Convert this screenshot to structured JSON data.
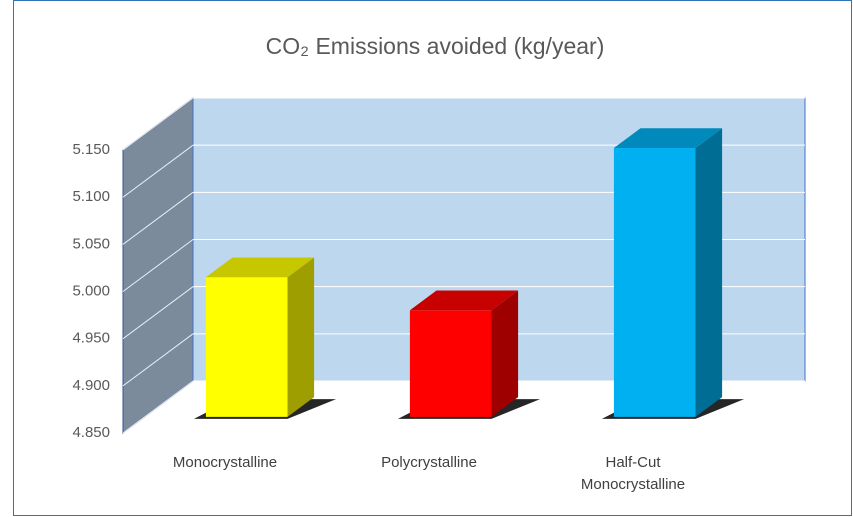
{
  "chart_data": {
    "type": "bar3d",
    "title": "CO₂ Emissions avoided (kg/year)",
    "categories": [
      "Monocrystalline",
      "Polycrystalline",
      "Half-Cut Monocrystalline"
    ],
    "values": [
      4.998,
      4.963,
      5.135
    ],
    "colors": [
      "#ffff00",
      "#ff0000",
      "#00b0f0"
    ],
    "ylim": [
      4.85,
      5.15
    ],
    "yticks": [
      {
        "value": 4.85,
        "label": "4.850"
      },
      {
        "value": 4.9,
        "label": "4.900"
      },
      {
        "value": 4.95,
        "label": "4.950"
      },
      {
        "value": 5.0,
        "label": "5.000"
      },
      {
        "value": 5.05,
        "label": "5.050"
      },
      {
        "value": 5.1,
        "label": "5.100"
      },
      {
        "value": 5.15,
        "label": "5.150"
      }
    ],
    "grid": true
  }
}
